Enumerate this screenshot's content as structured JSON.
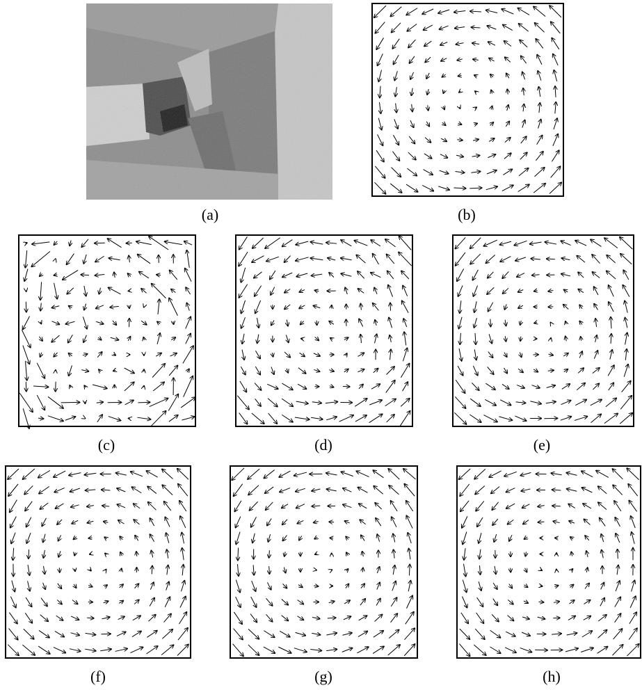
{
  "figure": {
    "panels": [
      {
        "label": "(a)"
      },
      {
        "label": "(b)"
      },
      {
        "label": "(c)"
      },
      {
        "label": "(d)"
      },
      {
        "label": "(e)"
      },
      {
        "label": "(f)"
      },
      {
        "label": "(g)"
      },
      {
        "label": "(h)"
      }
    ]
  }
}
